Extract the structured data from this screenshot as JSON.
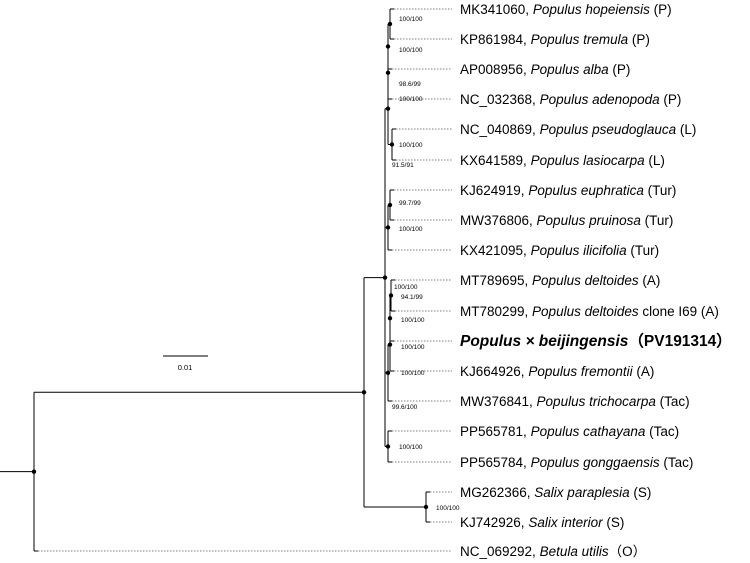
{
  "tips": [
    {
      "acc": "MK341060, ",
      "sp": "Populus hopeiensis",
      "suffix": " (P)"
    },
    {
      "acc": "KP861984, ",
      "sp": "Populus tremula",
      "suffix": " (P)"
    },
    {
      "acc": "AP008956, ",
      "sp": "Populus alba",
      "suffix": " (P)"
    },
    {
      "acc": "NC_032368, ",
      "sp": "Populus adenopoda",
      "suffix": " (P)"
    },
    {
      "acc": "NC_040869, ",
      "sp": "Populus pseudoglauca",
      "suffix": " (L)"
    },
    {
      "acc": "KX641589, ",
      "sp": "Populus lasiocarpa",
      "suffix": " (L)"
    },
    {
      "acc": "KJ624919, ",
      "sp": "Populus euphratica",
      "suffix": " (Tur)"
    },
    {
      "acc": "MW376806, ",
      "sp": "Populus pruinosa",
      "suffix": " (Tur)"
    },
    {
      "acc": "KX421095, ",
      "sp": "Populus ilicifolia",
      "suffix": " (Tur)"
    },
    {
      "acc": "MT789695, ",
      "sp": "Populus deltoides",
      "suffix": " (A)"
    },
    {
      "acc": "MT780299, ",
      "sp": "Populus deltoides",
      "suffix": " clone I69 (A)"
    },
    {
      "acc": "",
      "sp": "Populus × beijingensis",
      "suffix": "（PV191314）",
      "highlight": true
    },
    {
      "acc": "KJ664926, ",
      "sp": "Populus fremontii",
      "suffix": " (A)"
    },
    {
      "acc": "MW376841, ",
      "sp": "Populus trichocarpa",
      "suffix": " (Tac)"
    },
    {
      "acc": "PP565781, ",
      "sp": "Populus cathayana",
      "suffix": " (Tac)"
    },
    {
      "acc": "PP565784, ",
      "sp": "Populus gonggaensis",
      "suffix": " (Tac)"
    },
    {
      "acc": "MG262366, ",
      "sp": "Salix paraplesia",
      "suffix": " (S)"
    },
    {
      "acc": "KJ742926, ",
      "sp": "Salix interior",
      "suffix": " (S)"
    },
    {
      "acc": "NC_069292, ",
      "sp": "Betula utilis",
      "suffix": "（O）"
    }
  ],
  "support_values": [
    "100/100",
    "100/100",
    "98.6/99",
    "100/100",
    "100/100",
    "91.5/91",
    "99.7/99",
    "100/100",
    "100/100",
    "94.1/99",
    "100/100",
    "100/100",
    "100/100",
    "99.6/100",
    "100/100",
    "100/100"
  ],
  "scale_bar": {
    "label": "0.01"
  }
}
